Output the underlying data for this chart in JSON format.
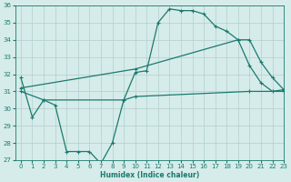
{
  "line1_x": [
    0,
    1,
    2,
    3,
    4,
    5,
    6,
    7,
    8,
    9,
    10,
    11,
    12,
    13,
    14,
    15,
    16,
    17,
    18,
    19,
    20,
    21,
    22,
    23
  ],
  "line1_y": [
    31.8,
    29.5,
    30.5,
    30.2,
    27.5,
    27.5,
    27.5,
    26.8,
    28.0,
    30.5,
    32.1,
    32.2,
    35.0,
    35.8,
    35.7,
    35.7,
    35.5,
    34.8,
    34.5,
    34.0,
    32.5,
    31.5,
    31.0,
    31.1
  ],
  "line2_x": [
    0,
    2,
    9,
    10,
    20,
    23
  ],
  "line2_y": [
    31.0,
    30.5,
    30.5,
    30.7,
    31.0,
    31.0
  ],
  "line3_x": [
    0,
    10,
    19,
    20,
    21,
    22,
    23
  ],
  "line3_y": [
    31.2,
    32.3,
    34.0,
    34.0,
    32.7,
    31.8,
    31.1
  ],
  "line_color": "#1a7a6e",
  "bg_color": "#d6ecea",
  "grid_color": "#b0cfcc",
  "xlabel": "Humidex (Indice chaleur)",
  "ylim": [
    27,
    36
  ],
  "xlim": [
    -0.5,
    23
  ],
  "yticks": [
    27,
    28,
    29,
    30,
    31,
    32,
    33,
    34,
    35,
    36
  ],
  "xticks": [
    0,
    1,
    2,
    3,
    4,
    5,
    6,
    7,
    8,
    9,
    10,
    11,
    12,
    13,
    14,
    15,
    16,
    17,
    18,
    19,
    20,
    21,
    22,
    23
  ],
  "marker": "+",
  "markersize": 3.5,
  "linewidth": 0.9,
  "axis_fontsize": 5.5,
  "tick_fontsize": 5.0
}
